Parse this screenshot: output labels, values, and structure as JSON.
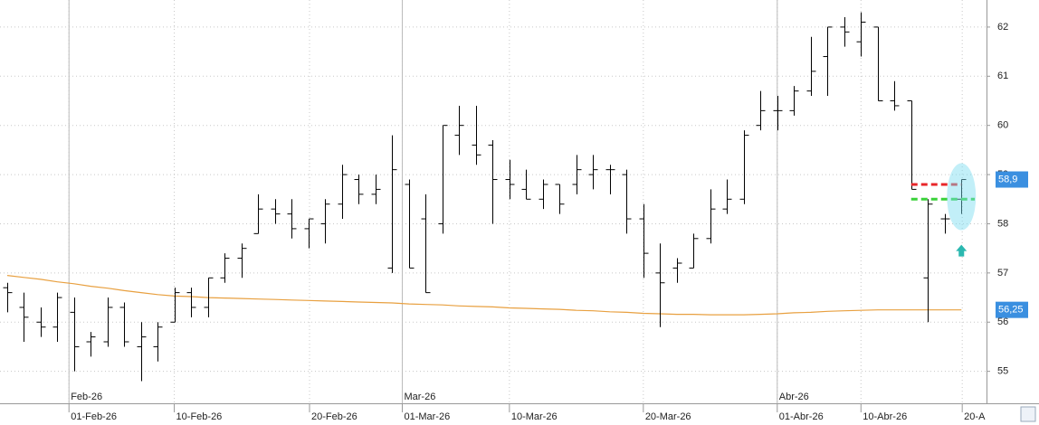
{
  "chart_data": {
    "type": "ohlc",
    "color": "#000000",
    "ylim": [
      54.35,
      62.55
    ],
    "yticks": [
      55,
      56,
      57,
      58,
      59,
      60,
      61,
      62
    ],
    "grid": true,
    "xlim": [
      -0.43,
      58.5
    ],
    "xticks": [
      {
        "value": 3.69,
        "label": "01-Feb-26"
      },
      {
        "value": 9.98,
        "label": "10-Feb-26"
      },
      {
        "value": 18.06,
        "label": "20-Feb-26"
      },
      {
        "value": 23.6,
        "label": "01-Mar-26"
      },
      {
        "value": 30.0,
        "label": "10-Mar-26"
      },
      {
        "value": 38.0,
        "label": "20-Mar-26"
      },
      {
        "value": 46.0,
        "label": "01-Abr-26"
      },
      {
        "value": 51.0,
        "label": "10-Abr-26"
      },
      {
        "value": 57.05,
        "label": "20-A"
      }
    ],
    "month_ticks": [
      {
        "value": 3.69,
        "label": "Feb-26"
      },
      {
        "value": 23.6,
        "label": "Mar-26"
      },
      {
        "value": 46.0,
        "label": "Abr-26"
      }
    ],
    "open": [
      56.7,
      56.3,
      56.0,
      55.9,
      56.2,
      55.6,
      55.6,
      56.3,
      55.5,
      55.5,
      56.0,
      56.6,
      56.3,
      56.9,
      57.3,
      57.8,
      58.3,
      58.2,
      57.9,
      58.0,
      58.4,
      58.9,
      58.6,
      57.1,
      58.8,
      58.1,
      58.0,
      59.8,
      59.6,
      59.6,
      58.9,
      58.7,
      58.5,
      58.8,
      58.8,
      59.0,
      59.1,
      59.0,
      58.1,
      57.0,
      57.1,
      57.1,
      57.7,
      58.3,
      58.5,
      60.0,
      60.3,
      60.3,
      60.7,
      61.4,
      62.0,
      61.7,
      62.0,
      60.5,
      60.5,
      56.9,
      58.1,
      58.5
    ],
    "high": [
      56.8,
      56.6,
      56.3,
      56.6,
      56.5,
      55.8,
      56.5,
      56.4,
      56.0,
      56.0,
      56.7,
      56.7,
      56.9,
      57.4,
      57.6,
      58.6,
      58.5,
      58.5,
      58.1,
      58.5,
      59.2,
      59.0,
      59.0,
      59.8,
      58.9,
      58.6,
      60.0,
      60.4,
      60.4,
      59.7,
      59.3,
      59.1,
      58.9,
      58.8,
      59.4,
      59.4,
      59.2,
      59.1,
      58.4,
      57.6,
      57.3,
      57.8,
      58.7,
      58.9,
      59.9,
      60.7,
      60.6,
      60.8,
      61.8,
      62.0,
      62.2,
      62.3,
      62.0,
      60.9,
      60.5,
      58.5,
      58.2,
      58.9
    ],
    "low": [
      56.2,
      55.6,
      55.7,
      55.6,
      55.0,
      55.3,
      55.5,
      55.5,
      54.8,
      55.2,
      56.0,
      56.1,
      56.1,
      56.8,
      56.9,
      57.8,
      58.0,
      57.7,
      57.5,
      57.6,
      58.1,
      58.4,
      58.4,
      57.0,
      57.1,
      56.6,
      57.8,
      59.4,
      59.2,
      58.0,
      58.5,
      58.5,
      58.3,
      58.2,
      58.6,
      58.7,
      58.6,
      57.8,
      56.9,
      55.9,
      56.8,
      57.1,
      57.6,
      58.2,
      58.4,
      59.9,
      59.9,
      60.2,
      60.6,
      60.6,
      61.6,
      61.4,
      60.5,
      60.3,
      58.7,
      56.0,
      57.8,
      58.2
    ],
    "close": [
      56.6,
      56.1,
      55.9,
      56.5,
      55.5,
      55.7,
      56.3,
      55.6,
      55.7,
      55.9,
      56.6,
      56.3,
      56.9,
      57.3,
      57.5,
      58.3,
      58.2,
      57.9,
      58.1,
      58.4,
      59.0,
      58.6,
      58.7,
      59.1,
      57.1,
      56.6,
      60.0,
      60.0,
      59.4,
      58.9,
      58.8,
      58.5,
      58.8,
      58.4,
      59.1,
      59.1,
      59.1,
      58.1,
      57.4,
      56.8,
      57.2,
      57.7,
      58.3,
      58.5,
      59.8,
      60.3,
      60.3,
      60.7,
      61.1,
      62.0,
      61.9,
      62.1,
      60.5,
      60.4,
      58.7,
      58.4,
      58.1,
      58.9
    ],
    "moving_average": {
      "color": "#e8a040",
      "values": [
        56.95,
        56.91,
        56.87,
        56.82,
        56.78,
        56.73,
        56.69,
        56.64,
        56.6,
        56.56,
        56.53,
        56.52,
        56.5,
        56.49,
        56.48,
        56.47,
        56.46,
        56.45,
        56.44,
        56.43,
        56.42,
        56.41,
        56.4,
        56.39,
        56.37,
        56.36,
        56.35,
        56.33,
        56.32,
        56.31,
        56.29,
        56.28,
        56.27,
        56.26,
        56.24,
        56.23,
        56.21,
        56.2,
        56.18,
        56.17,
        56.16,
        56.16,
        56.15,
        56.15,
        56.15,
        56.16,
        56.17,
        56.19,
        56.2,
        56.22,
        56.23,
        56.24,
        56.25,
        56.25,
        56.25,
        56.25,
        56.25,
        56.25
      ]
    },
    "levels": [
      {
        "value": 58.8,
        "color": "#e8262a",
        "from": 54,
        "to": 57
      },
      {
        "value": 58.5,
        "color": "#3ad23a",
        "from": 54,
        "to": 57.8
      }
    ],
    "price_tags": [
      {
        "value": 58.9,
        "label": "58,9",
        "color": "#3a8fe0"
      },
      {
        "value": 56.25,
        "label": "56,25",
        "color": "#3a8fe0"
      }
    ]
  }
}
